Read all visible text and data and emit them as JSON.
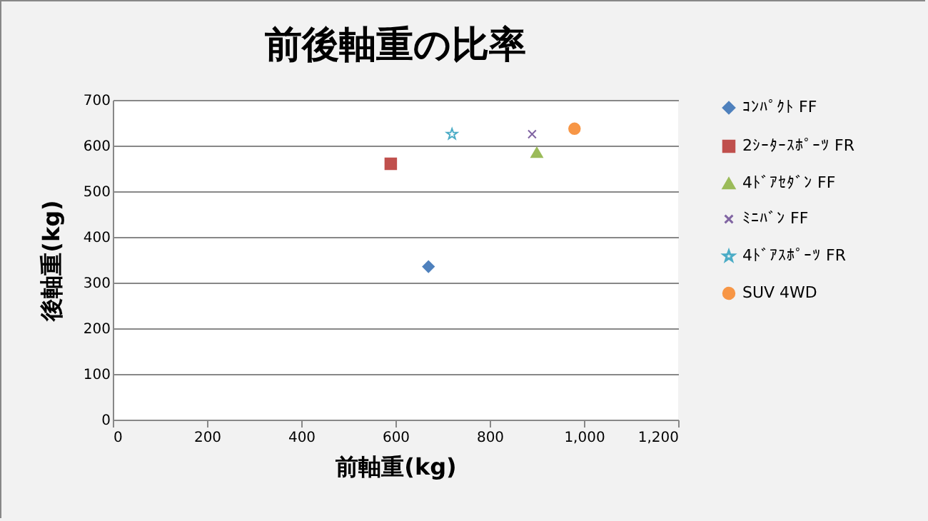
{
  "chart_data": {
    "type": "scatter",
    "title": "前後軸重の比率",
    "xlabel": "前軸重(kg)",
    "ylabel": "後軸重(kg)",
    "xlim": [
      0,
      1200
    ],
    "xticks": [
      0,
      200,
      400,
      600,
      800,
      {
        "value": 1000,
        "label": "1,000"
      },
      {
        "value": 1200,
        "label": "1,200"
      }
    ],
    "ylim": [
      0,
      700
    ],
    "yticks": [
      0,
      100,
      200,
      300,
      400,
      500,
      600,
      700
    ],
    "grid": "y",
    "legend": "right",
    "series": [
      {
        "name": "ｺﾝﾊﾟｸﾄ FF",
        "color": "#4f81bd",
        "marker": "diamond",
        "x": [
          670
        ],
        "values": [
          335
        ]
      },
      {
        "name": "2ｼｰﾀｰｽﾎﾟｰﾂ FR",
        "color": "#c0504d",
        "marker": "square",
        "x": [
          590
        ],
        "values": [
          560
        ]
      },
      {
        "name": "4ﾄﾞｱｾﾀﾞﾝ FF",
        "color": "#9bbb59",
        "marker": "triangle",
        "x": [
          900
        ],
        "values": [
          585
        ]
      },
      {
        "name": "ﾐﾆﾊﾞﾝ FF",
        "color": "#8064a2",
        "marker": "cross",
        "x": [
          890
        ],
        "values": [
          625
        ]
      },
      {
        "name": "4ﾄﾞｱｽﾎﾟｰﾂ FR",
        "color": "#4bacc6",
        "marker": "star",
        "x": [
          720
        ],
        "values": [
          625
        ]
      },
      {
        "name": "SUV 4WD",
        "color": "#f79646",
        "marker": "circle",
        "x": [
          980
        ],
        "values": [
          637
        ]
      }
    ]
  }
}
